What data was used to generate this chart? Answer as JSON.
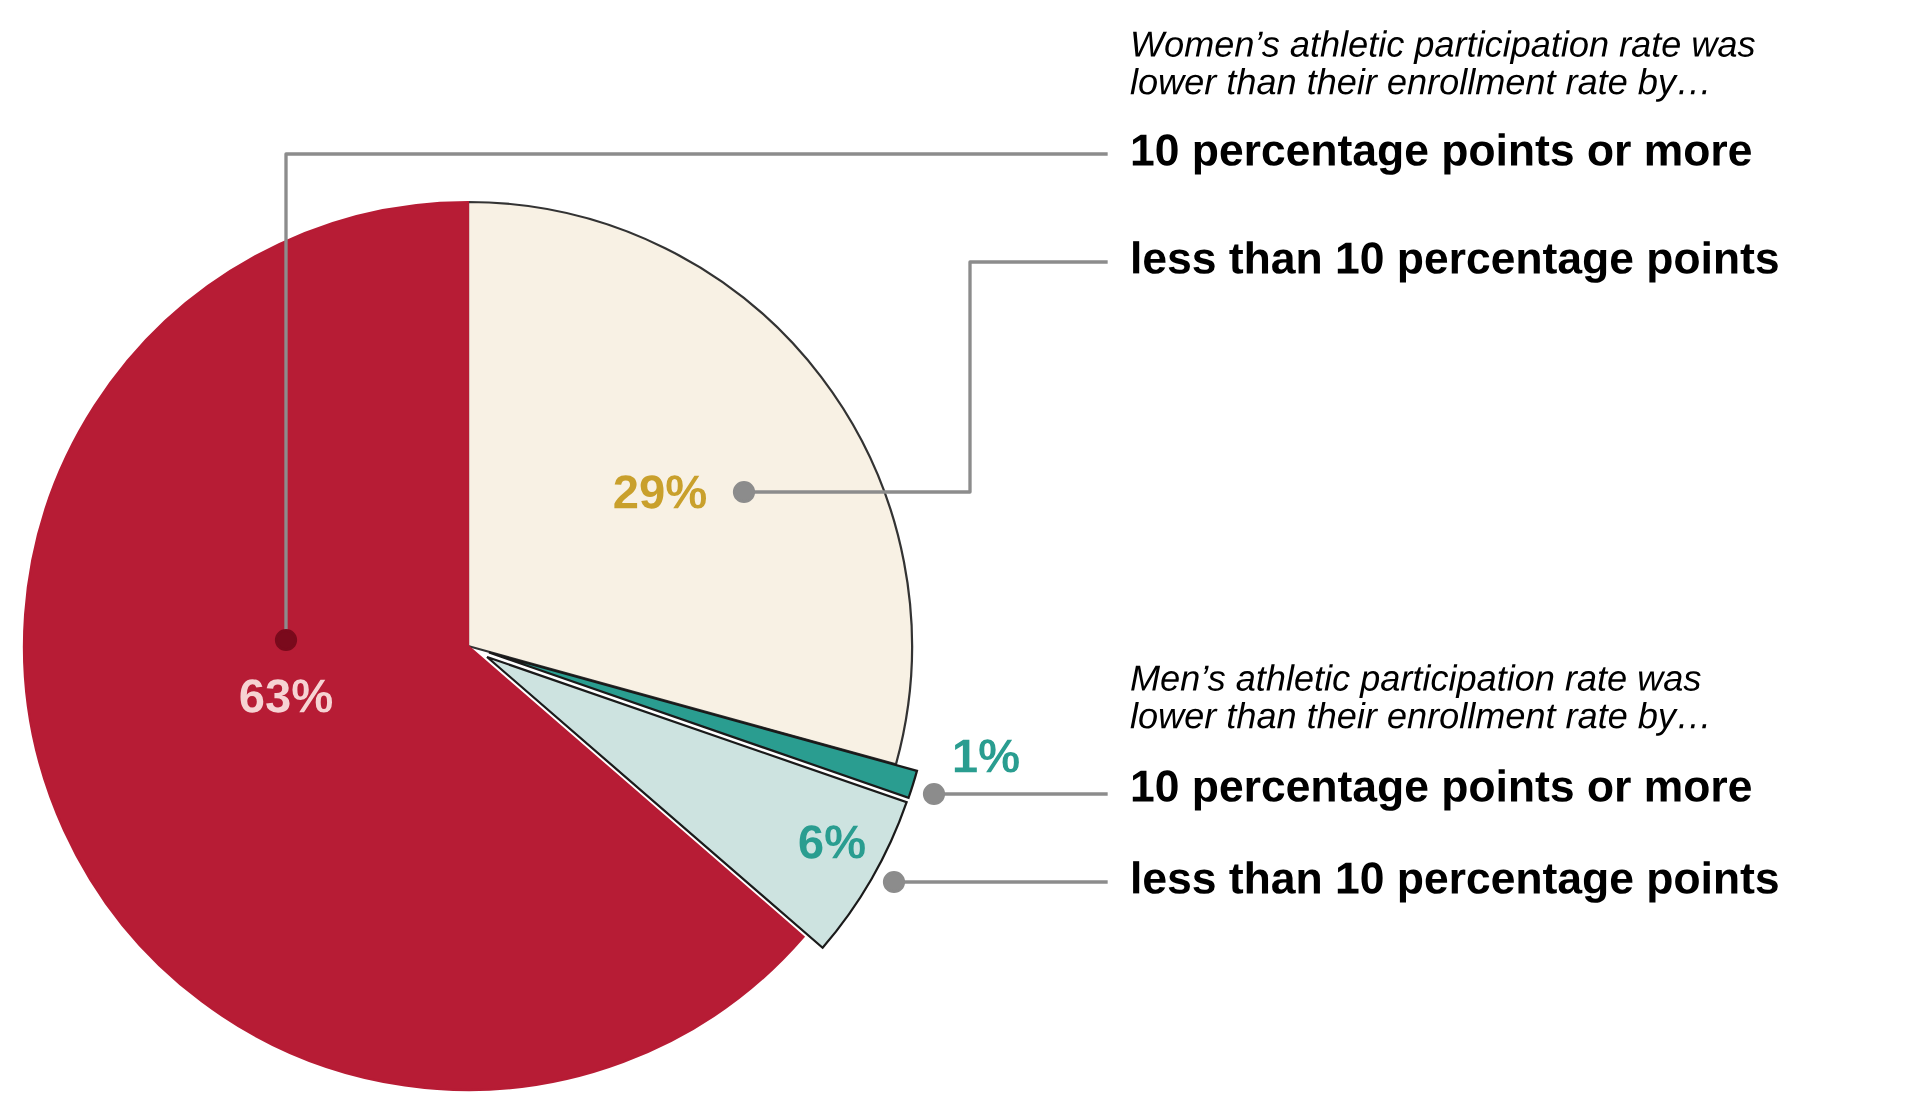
{
  "chart_data": {
    "type": "pie",
    "categories": [
      "less than 10 percentage points",
      "10 percentage points or more",
      "less than 10 percentage points",
      "10 percentage points or more"
    ],
    "values": [
      29,
      1,
      6,
      63
    ],
    "colors": [
      "#f8f1e4",
      "#2a9d90",
      "#cde3e0",
      "#b71c35"
    ],
    "value_labels": [
      "29%",
      "1%",
      "6%",
      "63%"
    ],
    "annotations": [
      "Women’s athletic participation rate was\nlower than their enrollment rate by…",
      "Men’s athletic participation rate was\nlower than their enrollment rate by…"
    ]
  }
}
